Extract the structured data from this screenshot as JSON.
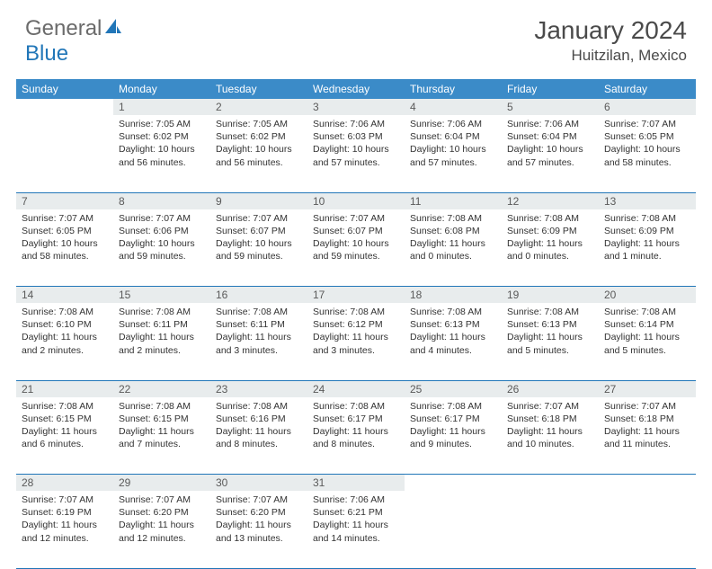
{
  "logo": {
    "word1": "General",
    "word2": "Blue"
  },
  "title": "January 2024",
  "location": "Huitzilan, Mexico",
  "colors": {
    "header_bg": "#3b8bc8",
    "border": "#2176b8",
    "daynum_bg": "#e8eced",
    "text": "#333333",
    "logo_gray": "#6b6b6b",
    "logo_blue": "#2176b8"
  },
  "day_headers": [
    "Sunday",
    "Monday",
    "Tuesday",
    "Wednesday",
    "Thursday",
    "Friday",
    "Saturday"
  ],
  "weeks": [
    {
      "nums": [
        "",
        "1",
        "2",
        "3",
        "4",
        "5",
        "6"
      ],
      "cells": [
        {},
        {
          "sunrise": "7:05 AM",
          "sunset": "6:02 PM",
          "day_h": "10",
          "day_m": "56"
        },
        {
          "sunrise": "7:05 AM",
          "sunset": "6:02 PM",
          "day_h": "10",
          "day_m": "56"
        },
        {
          "sunrise": "7:06 AM",
          "sunset": "6:03 PM",
          "day_h": "10",
          "day_m": "57"
        },
        {
          "sunrise": "7:06 AM",
          "sunset": "6:04 PM",
          "day_h": "10",
          "day_m": "57"
        },
        {
          "sunrise": "7:06 AM",
          "sunset": "6:04 PM",
          "day_h": "10",
          "day_m": "57"
        },
        {
          "sunrise": "7:07 AM",
          "sunset": "6:05 PM",
          "day_h": "10",
          "day_m": "58"
        }
      ]
    },
    {
      "nums": [
        "7",
        "8",
        "9",
        "10",
        "11",
        "12",
        "13"
      ],
      "cells": [
        {
          "sunrise": "7:07 AM",
          "sunset": "6:05 PM",
          "day_h": "10",
          "day_m": "58"
        },
        {
          "sunrise": "7:07 AM",
          "sunset": "6:06 PM",
          "day_h": "10",
          "day_m": "59"
        },
        {
          "sunrise": "7:07 AM",
          "sunset": "6:07 PM",
          "day_h": "10",
          "day_m": "59"
        },
        {
          "sunrise": "7:07 AM",
          "sunset": "6:07 PM",
          "day_h": "10",
          "day_m": "59"
        },
        {
          "sunrise": "7:08 AM",
          "sunset": "6:08 PM",
          "day_h": "11",
          "day_m": "0"
        },
        {
          "sunrise": "7:08 AM",
          "sunset": "6:09 PM",
          "day_h": "11",
          "day_m": "0"
        },
        {
          "sunrise": "7:08 AM",
          "sunset": "6:09 PM",
          "day_h": "11",
          "day_m": "1"
        }
      ]
    },
    {
      "nums": [
        "14",
        "15",
        "16",
        "17",
        "18",
        "19",
        "20"
      ],
      "cells": [
        {
          "sunrise": "7:08 AM",
          "sunset": "6:10 PM",
          "day_h": "11",
          "day_m": "2"
        },
        {
          "sunrise": "7:08 AM",
          "sunset": "6:11 PM",
          "day_h": "11",
          "day_m": "2"
        },
        {
          "sunrise": "7:08 AM",
          "sunset": "6:11 PM",
          "day_h": "11",
          "day_m": "3"
        },
        {
          "sunrise": "7:08 AM",
          "sunset": "6:12 PM",
          "day_h": "11",
          "day_m": "3"
        },
        {
          "sunrise": "7:08 AM",
          "sunset": "6:13 PM",
          "day_h": "11",
          "day_m": "4"
        },
        {
          "sunrise": "7:08 AM",
          "sunset": "6:13 PM",
          "day_h": "11",
          "day_m": "5"
        },
        {
          "sunrise": "7:08 AM",
          "sunset": "6:14 PM",
          "day_h": "11",
          "day_m": "5"
        }
      ]
    },
    {
      "nums": [
        "21",
        "22",
        "23",
        "24",
        "25",
        "26",
        "27"
      ],
      "cells": [
        {
          "sunrise": "7:08 AM",
          "sunset": "6:15 PM",
          "day_h": "11",
          "day_m": "6"
        },
        {
          "sunrise": "7:08 AM",
          "sunset": "6:15 PM",
          "day_h": "11",
          "day_m": "7"
        },
        {
          "sunrise": "7:08 AM",
          "sunset": "6:16 PM",
          "day_h": "11",
          "day_m": "8"
        },
        {
          "sunrise": "7:08 AM",
          "sunset": "6:17 PM",
          "day_h": "11",
          "day_m": "8"
        },
        {
          "sunrise": "7:08 AM",
          "sunset": "6:17 PM",
          "day_h": "11",
          "day_m": "9"
        },
        {
          "sunrise": "7:07 AM",
          "sunset": "6:18 PM",
          "day_h": "11",
          "day_m": "10"
        },
        {
          "sunrise": "7:07 AM",
          "sunset": "6:18 PM",
          "day_h": "11",
          "day_m": "11"
        }
      ]
    },
    {
      "nums": [
        "28",
        "29",
        "30",
        "31",
        "",
        "",
        ""
      ],
      "cells": [
        {
          "sunrise": "7:07 AM",
          "sunset": "6:19 PM",
          "day_h": "11",
          "day_m": "12"
        },
        {
          "sunrise": "7:07 AM",
          "sunset": "6:20 PM",
          "day_h": "11",
          "day_m": "12"
        },
        {
          "sunrise": "7:07 AM",
          "sunset": "6:20 PM",
          "day_h": "11",
          "day_m": "13"
        },
        {
          "sunrise": "7:06 AM",
          "sunset": "6:21 PM",
          "day_h": "11",
          "day_m": "14"
        },
        {},
        {},
        {}
      ]
    }
  ],
  "labels": {
    "sunrise": "Sunrise:",
    "sunset": "Sunset:",
    "daylight_prefix": "Daylight:",
    "hours_word": "hours",
    "and_word": "and",
    "minutes_word": "minutes.",
    "minute_word": "minute."
  }
}
